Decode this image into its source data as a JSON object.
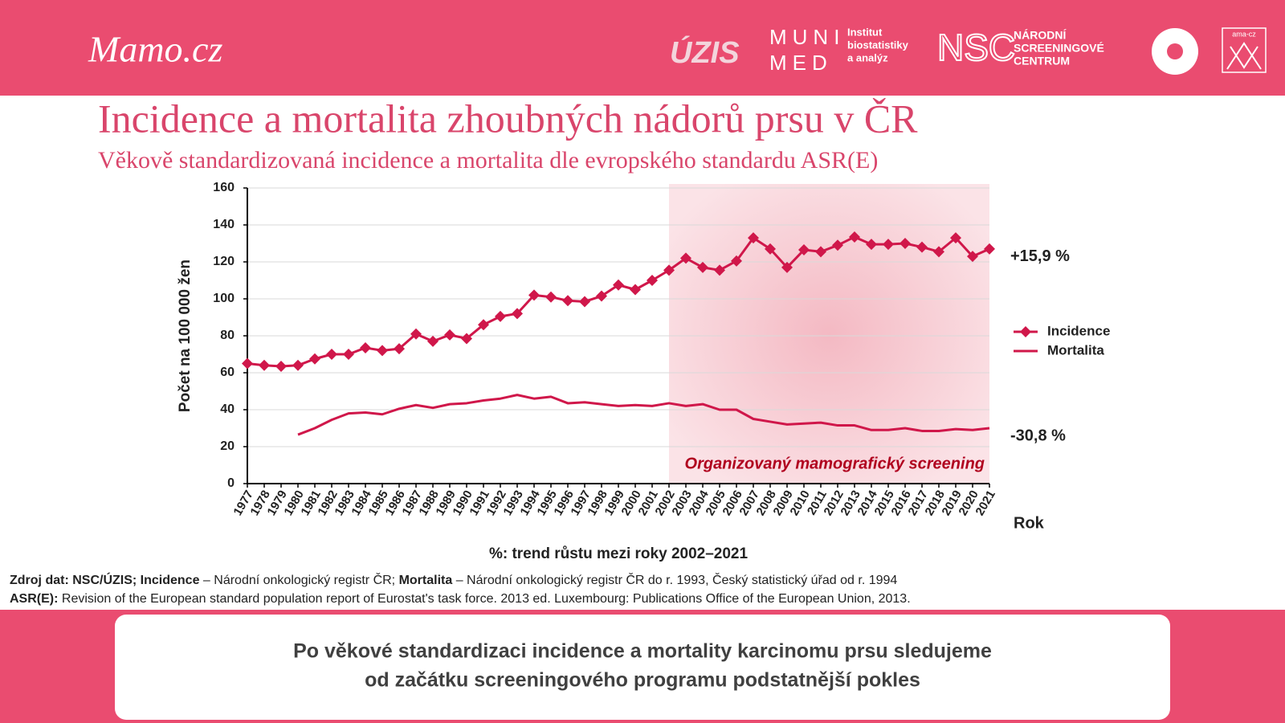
{
  "header": {
    "brand": "Mamo.cz",
    "logos": {
      "uzis": "ÚZIS",
      "muni": [
        "MUNI",
        "MED"
      ],
      "institute": [
        "Institut",
        "biostatistiky",
        "a analýz"
      ],
      "nsc": "NSC",
      "nsc_name": [
        "NÁRODNÍ",
        "SCREENINGOVÉ",
        "CENTRUM"
      ],
      "ama": "ama-cz"
    }
  },
  "chart_data": {
    "type": "line",
    "title": "Incidence a mortalita zhoubných nádorů prsu v ČR",
    "subtitle": "Věkově standardizovaná incidence a mortalita dle evropského standardu ASR(E)",
    "ylabel": "Počet  na 100 000 žen",
    "xlabel": "Rok",
    "note": "%: trend růstu mezi roky 2002–2021",
    "categories": [
      "1977",
      "1978",
      "1979",
      "1980",
      "1981",
      "1982",
      "1983",
      "1984",
      "1985",
      "1986",
      "1987",
      "1988",
      "1989",
      "1990",
      "1991",
      "1992",
      "1993",
      "1994",
      "1995",
      "1996",
      "1997",
      "1998",
      "1999",
      "2000",
      "2001",
      "2002",
      "2003",
      "2004",
      "2005",
      "2006",
      "2007",
      "2008",
      "2009",
      "2010",
      "2011",
      "2012",
      "2013",
      "2014",
      "2015",
      "2016",
      "2017",
      "2018",
      "2019",
      "2020",
      "2021"
    ],
    "series": [
      {
        "name": "Incidence",
        "color": "#d0174a",
        "marker": "diamond",
        "trend_label": "+15,9 %",
        "values": [
          65,
          64,
          63.5,
          64,
          67.5,
          70,
          70,
          73.5,
          72,
          73,
          81,
          77,
          80.5,
          78.5,
          86,
          90.5,
          92,
          102,
          101,
          99,
          98.5,
          101.5,
          107.5,
          105,
          110,
          115.5,
          122,
          117,
          115.5,
          120.5,
          133,
          127,
          117,
          126.5,
          125.5,
          129,
          133.5,
          129.5,
          129.5,
          130,
          128,
          125.5,
          133,
          123,
          127
        ]
      },
      {
        "name": "Mortalita",
        "color": "#d0174a",
        "marker": "none",
        "trend_label": "-30,8 %",
        "values": [
          null,
          null,
          null,
          26.5,
          30,
          34.5,
          38,
          38.5,
          37.5,
          40.5,
          42.5,
          41,
          43,
          43.5,
          45,
          46,
          48,
          46,
          47,
          43.5,
          44,
          43,
          42,
          42.5,
          42,
          43.5,
          42,
          43,
          40,
          40,
          35,
          33.5,
          32,
          32.5,
          33,
          31.5,
          31.5,
          29,
          29,
          30,
          28.5,
          28.5,
          29.5,
          29,
          30
        ]
      }
    ],
    "ylim": [
      0,
      160
    ],
    "yticks": [
      0,
      20,
      40,
      60,
      80,
      100,
      120,
      140,
      160
    ],
    "grid": true,
    "shaded_region": {
      "label": "Organizovaný mamografický screening",
      "from": "2002",
      "to": "2021"
    }
  },
  "footer": {
    "source": [
      [
        {
          "text": "Zdroj dat: NSC/ÚZIS; Incidence",
          "bold": true
        },
        {
          "text": " – Národní onkologický registr ČR; ",
          "bold": false
        },
        {
          "text": "Mortalita",
          "bold": true
        },
        {
          "text": " – Národní onkologický registr ČR do r. 1993, Český statistický úřad od r. 1994",
          "bold": false
        }
      ],
      [
        {
          "text": "ASR(E):",
          "bold": true
        },
        {
          "text": " Revision of the European standard population report of Eurostat's task force. 2013 ed. Luxembourg: Publications Office of the European Union, 2013.",
          "bold": false
        }
      ]
    ],
    "conclusion": [
      "Po věkové standardizaci incidence a mortality karcinomu prsu sledujeme",
      "od začátku screeningového programu podstatnější pokles"
    ]
  }
}
